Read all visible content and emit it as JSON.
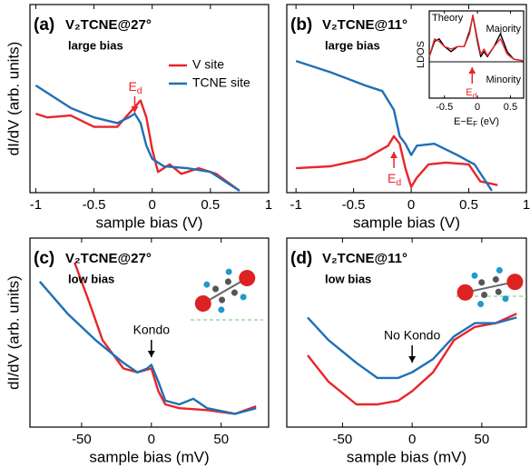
{
  "chart_data": [
    {
      "type": "line",
      "panel": "(a)",
      "title": "V₂TCNE@27°",
      "subtitle": "large bias",
      "xlabel": "sample bias (V)",
      "ylabel": "dI/dV (arb. units)",
      "xlim": [
        -1.05,
        1
      ],
      "xticks": [
        -1,
        -0.5,
        0,
        0.5,
        1
      ],
      "ylim": [
        0,
        1
      ],
      "legend": "upper right",
      "annotation": {
        "text": "E",
        "subscript": "d",
        "color": "#e8262b"
      },
      "series": [
        {
          "name": "V site",
          "color": "#e8262b",
          "x": [
            -1,
            -0.9,
            -0.7,
            -0.5,
            -0.3,
            -0.2,
            -0.1,
            -0.05,
            0,
            0.05,
            0.15,
            0.25,
            0.4,
            0.55,
            0.75
          ],
          "values": [
            0.42,
            0.4,
            0.41,
            0.35,
            0.35,
            0.42,
            0.49,
            0.4,
            0.23,
            0.11,
            0.15,
            0.1,
            0.13,
            0.1,
            0.01
          ]
        },
        {
          "name": "TCNE site",
          "color": "#1f6fb5",
          "x": [
            -1,
            -0.7,
            -0.5,
            -0.3,
            -0.2,
            -0.15,
            -0.1,
            -0.05,
            0,
            0.1,
            0.3,
            0.5,
            0.7,
            0.75
          ],
          "values": [
            0.57,
            0.45,
            0.4,
            0.37,
            0.4,
            0.42,
            0.37,
            0.25,
            0.18,
            0.14,
            0.13,
            0.11,
            0.03,
            0.01
          ]
        }
      ]
    },
    {
      "type": "line",
      "panel": "(b)",
      "title": "V₂TCNE@11°",
      "subtitle": "large bias",
      "xlabel": "sample bias (V)",
      "xlim": [
        -1.08,
        1
      ],
      "xticks": [
        -1,
        -0.5,
        0,
        0.5,
        1
      ],
      "ylim": [
        0,
        1
      ],
      "annotation": {
        "text": "E",
        "subscript": "d",
        "color": "#e8262b"
      },
      "series": [
        {
          "color": "#e8262b",
          "x": [
            -1,
            -0.7,
            -0.4,
            -0.2,
            -0.15,
            -0.1,
            -0.05,
            0,
            0.05,
            0.15,
            0.3,
            0.5,
            0.6,
            0.75
          ],
          "values": [
            0.13,
            0.14,
            0.18,
            0.25,
            0.3,
            0.26,
            0.13,
            0.03,
            0.08,
            0.15,
            0.16,
            0.15,
            0.06,
            0.04
          ]
        },
        {
          "color": "#1f6fb5",
          "x": [
            -1,
            -0.7,
            -0.4,
            -0.25,
            -0.15,
            -0.1,
            -0.05,
            0,
            0.05,
            0.2,
            0.4,
            0.55,
            0.7
          ],
          "values": [
            0.7,
            0.64,
            0.57,
            0.54,
            0.44,
            0.3,
            0.26,
            0.2,
            0.25,
            0.26,
            0.2,
            0.15,
            0.01
          ]
        }
      ]
    },
    {
      "type": "line",
      "panel": "(c)",
      "title": "V₂TCNE@27°",
      "subtitle": "low bias",
      "xlabel": "sample bias (mV)",
      "ylabel": "dI/dV (arb. units)",
      "xlim": [
        -87,
        84
      ],
      "xticks": [
        -50,
        0,
        50
      ],
      "ylim": [
        0,
        1
      ],
      "annotation": {
        "text": "Kondo",
        "color": "#000000"
      },
      "series": [
        {
          "color": "#e8262b",
          "x": [
            -55,
            -45,
            -35,
            -20,
            -10,
            0,
            5,
            10,
            20,
            40,
            60,
            75
          ],
          "values": [
            0.87,
            0.67,
            0.46,
            0.31,
            0.29,
            0.31,
            0.19,
            0.12,
            0.1,
            0.09,
            0.07,
            0.11
          ]
        },
        {
          "color": "#1f6fb5",
          "x": [
            -80,
            -60,
            -40,
            -20,
            -10,
            -3,
            0,
            5,
            10,
            20,
            30,
            40,
            60,
            75
          ],
          "values": [
            0.77,
            0.6,
            0.46,
            0.34,
            0.29,
            0.31,
            0.33,
            0.24,
            0.14,
            0.12,
            0.15,
            0.1,
            0.07,
            0.1
          ]
        }
      ]
    },
    {
      "type": "line",
      "panel": "(d)",
      "title": "V₂TCNE@11°",
      "subtitle": "low bias",
      "xlabel": "sample bias (mV)",
      "xlim": [
        -90,
        82
      ],
      "xticks": [
        -50,
        0,
        50
      ],
      "ylim": [
        0,
        1
      ],
      "annotation": {
        "text": "No Kondo",
        "color": "#000000"
      },
      "series": [
        {
          "color": "#e8262b",
          "x": [
            -75,
            -60,
            -40,
            -25,
            -10,
            0,
            15,
            30,
            45,
            60,
            75
          ],
          "values": [
            0.38,
            0.24,
            0.12,
            0.12,
            0.14,
            0.19,
            0.29,
            0.46,
            0.53,
            0.55,
            0.6
          ]
        },
        {
          "color": "#1f6fb5",
          "x": [
            -75,
            -60,
            -40,
            -25,
            -10,
            0,
            15,
            30,
            45,
            60,
            75
          ],
          "values": [
            0.58,
            0.46,
            0.34,
            0.26,
            0.26,
            0.29,
            0.36,
            0.48,
            0.55,
            0.55,
            0.58
          ]
        }
      ]
    },
    {
      "type": "line",
      "inset": "Theory",
      "upper": "Majority",
      "lower": "Minority",
      "ylabel": "LDOS",
      "xlabel": {
        "text": "E−E",
        "subscript": "F",
        "unit": " (eV)"
      },
      "annotation": {
        "text": "E",
        "subscript": "d",
        "color": "#e8262b"
      },
      "xlim": [
        -0.73,
        0.7
      ],
      "xticks": [
        -0.5,
        0,
        0.5
      ],
      "ylim": [
        0,
        1
      ],
      "series": [
        {
          "color": "#000000",
          "x": [
            -0.73,
            -0.65,
            -0.58,
            -0.5,
            -0.4,
            -0.3,
            -0.2,
            -0.12,
            -0.07,
            0,
            0.05,
            0.1,
            0.15,
            0.25,
            0.35,
            0.45,
            0.55,
            0.7
          ],
          "values": [
            0.1,
            0.4,
            0.45,
            0.3,
            0.2,
            0.3,
            0.3,
            0.6,
            0.9,
            0.4,
            0.1,
            0.2,
            0.1,
            0.3,
            0.55,
            0.2,
            0.05,
            0.02
          ]
        },
        {
          "color": "#e8262b",
          "x": [
            -0.73,
            -0.65,
            -0.58,
            -0.5,
            -0.4,
            -0.3,
            -0.2,
            -0.12,
            -0.07,
            0,
            0.05,
            0.1,
            0.15,
            0.25,
            0.35,
            0.45,
            0.55,
            0.7
          ],
          "values": [
            0.1,
            0.45,
            0.4,
            0.3,
            0.25,
            0.3,
            0.3,
            0.55,
            0.92,
            0.45,
            0.15,
            0.25,
            0.12,
            0.3,
            0.45,
            0.15,
            0.05,
            0.02
          ]
        }
      ]
    }
  ]
}
